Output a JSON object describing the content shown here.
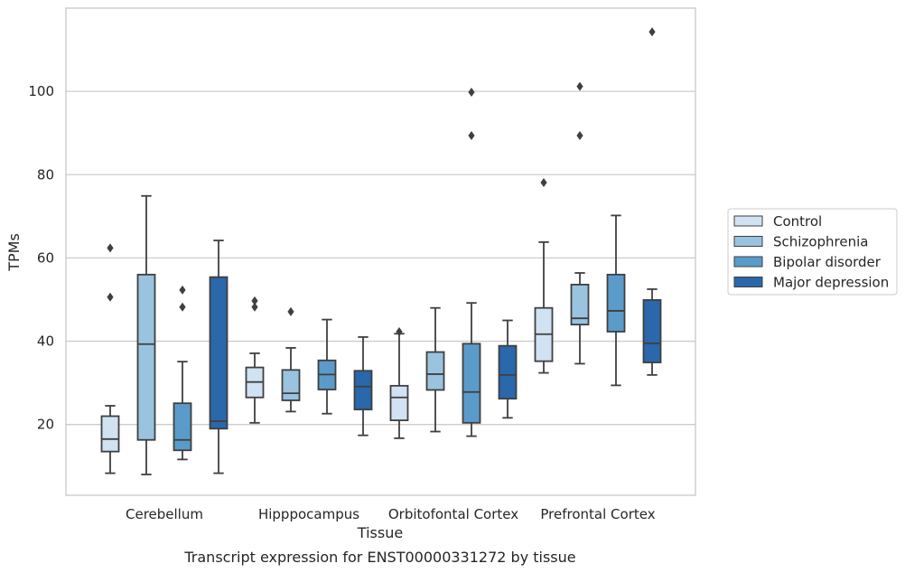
{
  "chart_data": {
    "type": "box",
    "title": "",
    "caption": "Transcript expression for ENST00000331272 by tissue",
    "xlabel": "Tissue",
    "ylabel": "TPMs",
    "ylim": [
      3,
      120
    ],
    "yticks": [
      20,
      40,
      60,
      80,
      100
    ],
    "grid": "horizontal",
    "legend_position": "right",
    "categories": [
      "Cerebellum",
      "Hipppocampus",
      "Orbitofontal Cortex",
      "Prefrontal Cortex"
    ],
    "series": [
      {
        "name": "Control",
        "color": "#d1e2f2",
        "boxes": [
          {
            "whislo": 8.3,
            "q1": 13.5,
            "med": 16.5,
            "q3": 22.0,
            "whishi": 24.5,
            "fliers": [
              50.6,
              62.4
            ]
          },
          {
            "whislo": 20.4,
            "q1": 26.5,
            "med": 30.2,
            "q3": 33.7,
            "whishi": 37.1,
            "fliers": [
              48.2,
              49.7
            ]
          },
          {
            "whislo": 16.7,
            "q1": 21.0,
            "med": 26.5,
            "q3": 29.3,
            "whishi": 41.8,
            "fliers": [
              42.3
            ]
          },
          {
            "whislo": 32.4,
            "q1": 35.2,
            "med": 41.7,
            "q3": 48.0,
            "whishi": 63.8,
            "fliers": [
              78.1
            ]
          }
        ]
      },
      {
        "name": "Schizophrenia",
        "color": "#9ac3df",
        "boxes": [
          {
            "whislo": 8.0,
            "q1": 16.3,
            "med": 39.3,
            "q3": 56.0,
            "whishi": 74.9,
            "fliers": []
          },
          {
            "whislo": 23.1,
            "q1": 25.8,
            "med": 27.5,
            "q3": 33.1,
            "whishi": 38.4,
            "fliers": [
              47.1
            ]
          },
          {
            "whislo": 18.3,
            "q1": 28.3,
            "med": 32.1,
            "q3": 37.4,
            "whishi": 48.0,
            "fliers": []
          },
          {
            "whislo": 34.6,
            "q1": 44.0,
            "med": 45.5,
            "q3": 53.6,
            "whishi": 56.4,
            "fliers": [
              89.4,
              101.2
            ]
          }
        ]
      },
      {
        "name": "Bipolar disorder",
        "color": "#5a9bc9",
        "boxes": [
          {
            "whislo": 11.6,
            "q1": 13.8,
            "med": 16.3,
            "q3": 25.1,
            "whishi": 35.1,
            "fliers": [
              48.2,
              52.3
            ]
          },
          {
            "whislo": 22.6,
            "q1": 28.4,
            "med": 32.0,
            "q3": 35.4,
            "whishi": 45.2,
            "fliers": []
          },
          {
            "whislo": 17.2,
            "q1": 20.4,
            "med": 27.8,
            "q3": 39.4,
            "whishi": 49.2,
            "fliers": [
              89.4,
              99.8
            ]
          },
          {
            "whislo": 29.4,
            "q1": 42.3,
            "med": 47.3,
            "q3": 56.0,
            "whishi": 70.2,
            "fliers": []
          }
        ]
      },
      {
        "name": "Major depression",
        "color": "#2a67ab",
        "boxes": [
          {
            "whislo": 8.3,
            "q1": 19.0,
            "med": 20.8,
            "q3": 55.4,
            "whishi": 64.2,
            "fliers": []
          },
          {
            "whislo": 17.4,
            "q1": 23.6,
            "med": 29.1,
            "q3": 32.9,
            "whishi": 41.0,
            "fliers": []
          },
          {
            "whislo": 21.6,
            "q1": 26.2,
            "med": 31.9,
            "q3": 38.9,
            "whishi": 45.0,
            "fliers": []
          },
          {
            "whislo": 31.9,
            "q1": 34.9,
            "med": 39.5,
            "q3": 49.9,
            "whishi": 52.5,
            "fliers": [
              114.3
            ]
          }
        ]
      }
    ]
  }
}
